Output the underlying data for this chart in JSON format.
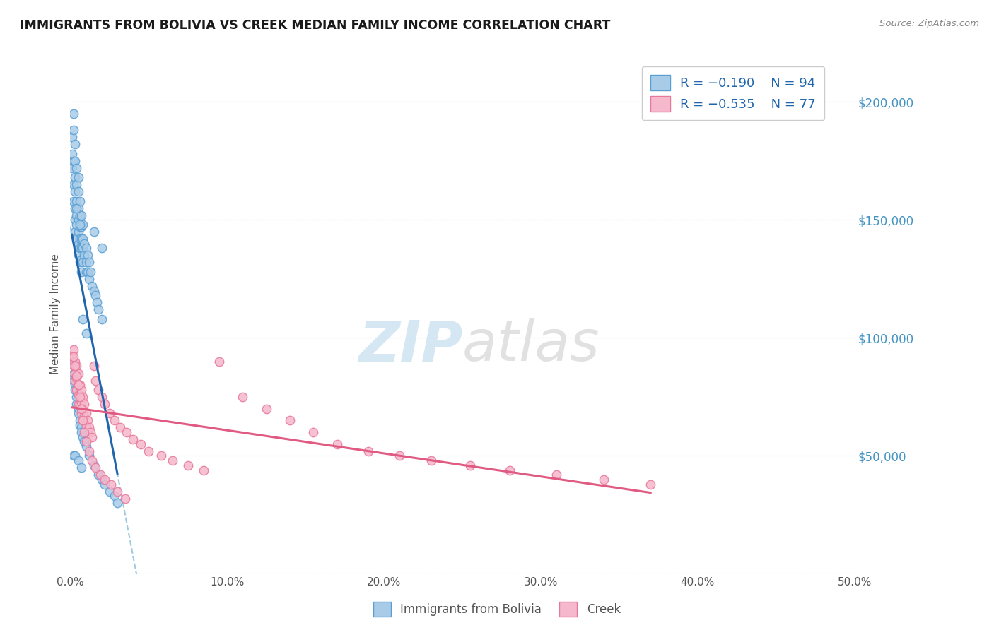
{
  "title": "IMMIGRANTS FROM BOLIVIA VS CREEK MEDIAN FAMILY INCOME CORRELATION CHART",
  "source_text": "Source: ZipAtlas.com",
  "ylabel": "Median Family Income",
  "watermark_zip": "ZIP",
  "watermark_atlas": "atlas",
  "xmin": 0.0,
  "xmax": 0.5,
  "ymin": 0,
  "ymax": 220000,
  "yticks": [
    0,
    50000,
    100000,
    150000,
    200000
  ],
  "ytick_labels": [
    "",
    "$50,000",
    "$100,000",
    "$150,000",
    "$200,000"
  ],
  "xticks": [
    0.0,
    0.1,
    0.2,
    0.3,
    0.4,
    0.5
  ],
  "xtick_labels": [
    "0.0%",
    "10.0%",
    "20.0%",
    "30.0%",
    "40.0%",
    "50.0%"
  ],
  "blue_fill": "#a8cce8",
  "blue_edge": "#5a9fd4",
  "pink_fill": "#f5b8cc",
  "pink_edge": "#e8789a",
  "trend_blue_color": "#2166ac",
  "trend_pink_color": "#e05a82",
  "trend_gray_color": "#9ecae1",
  "legend_label_blue": "Immigrants from Bolivia",
  "legend_label_pink": "Creek",
  "blue_R": -0.19,
  "blue_N": 94,
  "pink_R": -0.535,
  "pink_N": 77,
  "blue_x": [
    0.001,
    0.001,
    0.001,
    0.002,
    0.002,
    0.002,
    0.002,
    0.002,
    0.003,
    0.003,
    0.003,
    0.003,
    0.003,
    0.003,
    0.003,
    0.004,
    0.004,
    0.004,
    0.004,
    0.004,
    0.004,
    0.005,
    0.005,
    0.005,
    0.005,
    0.005,
    0.005,
    0.005,
    0.006,
    0.006,
    0.006,
    0.006,
    0.006,
    0.006,
    0.007,
    0.007,
    0.007,
    0.007,
    0.007,
    0.007,
    0.008,
    0.008,
    0.008,
    0.008,
    0.009,
    0.009,
    0.01,
    0.01,
    0.01,
    0.011,
    0.011,
    0.012,
    0.012,
    0.013,
    0.014,
    0.015,
    0.016,
    0.017,
    0.018,
    0.02,
    0.001,
    0.002,
    0.002,
    0.003,
    0.003,
    0.004,
    0.004,
    0.005,
    0.005,
    0.006,
    0.006,
    0.007,
    0.007,
    0.008,
    0.009,
    0.01,
    0.012,
    0.015,
    0.018,
    0.02,
    0.022,
    0.025,
    0.028,
    0.03,
    0.004,
    0.006,
    0.008,
    0.01,
    0.015,
    0.02,
    0.002,
    0.003,
    0.005,
    0.007
  ],
  "blue_y": [
    185000,
    178000,
    172000,
    195000,
    188000,
    175000,
    165000,
    158000,
    182000,
    175000,
    168000,
    162000,
    155000,
    150000,
    145000,
    172000,
    165000,
    158000,
    152000,
    148000,
    142000,
    168000,
    162000,
    155000,
    150000,
    145000,
    140000,
    135000,
    158000,
    152000,
    147000,
    142000,
    138000,
    132000,
    152000,
    147000,
    142000,
    138000,
    133000,
    128000,
    148000,
    142000,
    138000,
    132000,
    140000,
    135000,
    138000,
    132000,
    128000,
    135000,
    128000,
    132000,
    125000,
    128000,
    122000,
    120000,
    118000,
    115000,
    112000,
    108000,
    90000,
    85000,
    82000,
    80000,
    78000,
    75000,
    72000,
    70000,
    68000,
    65000,
    63000,
    62000,
    60000,
    58000,
    56000,
    54000,
    50000,
    46000,
    42000,
    40000,
    38000,
    35000,
    33000,
    30000,
    155000,
    148000,
    108000,
    102000,
    145000,
    138000,
    50000,
    50000,
    48000,
    45000
  ],
  "pink_x": [
    0.001,
    0.002,
    0.002,
    0.003,
    0.003,
    0.003,
    0.004,
    0.004,
    0.004,
    0.005,
    0.005,
    0.005,
    0.005,
    0.006,
    0.006,
    0.006,
    0.007,
    0.007,
    0.007,
    0.008,
    0.008,
    0.008,
    0.009,
    0.009,
    0.01,
    0.01,
    0.011,
    0.012,
    0.013,
    0.014,
    0.015,
    0.016,
    0.018,
    0.02,
    0.022,
    0.025,
    0.028,
    0.032,
    0.036,
    0.04,
    0.045,
    0.05,
    0.058,
    0.065,
    0.075,
    0.085,
    0.095,
    0.11,
    0.125,
    0.14,
    0.155,
    0.17,
    0.19,
    0.21,
    0.23,
    0.255,
    0.28,
    0.31,
    0.34,
    0.37,
    0.002,
    0.003,
    0.004,
    0.005,
    0.006,
    0.007,
    0.008,
    0.009,
    0.01,
    0.012,
    0.014,
    0.016,
    0.019,
    0.022,
    0.026,
    0.03,
    0.035
  ],
  "pink_y": [
    92000,
    95000,
    88000,
    90000,
    85000,
    82000,
    88000,
    83000,
    78000,
    85000,
    80000,
    76000,
    72000,
    80000,
    76000,
    72000,
    78000,
    73000,
    68000,
    75000,
    70000,
    65000,
    72000,
    67000,
    68000,
    63000,
    65000,
    62000,
    60000,
    58000,
    88000,
    82000,
    78000,
    75000,
    72000,
    68000,
    65000,
    62000,
    60000,
    57000,
    55000,
    52000,
    50000,
    48000,
    46000,
    44000,
    90000,
    75000,
    70000,
    65000,
    60000,
    55000,
    52000,
    50000,
    48000,
    46000,
    44000,
    42000,
    40000,
    38000,
    92000,
    88000,
    84000,
    80000,
    75000,
    70000,
    65000,
    60000,
    56000,
    52000,
    48000,
    45000,
    42000,
    40000,
    38000,
    35000,
    32000
  ]
}
